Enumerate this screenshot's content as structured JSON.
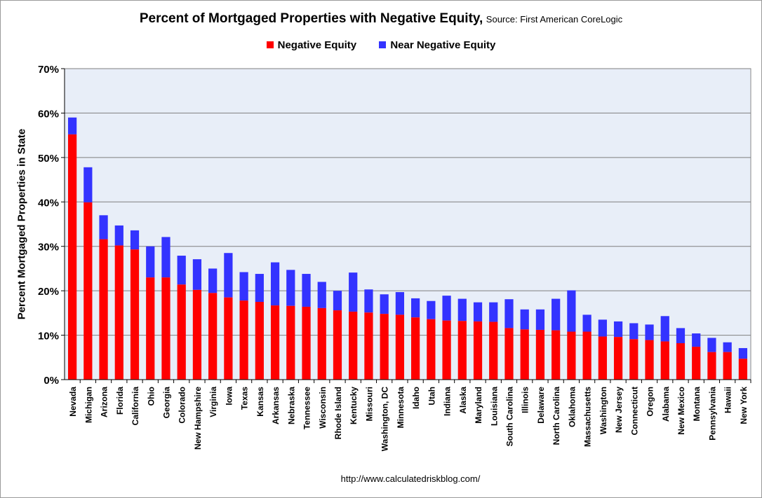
{
  "title": "Percent of Mortgaged Properties with Negative Equity,",
  "source": "Source: First American CoreLogic",
  "footer": "http://www.calculatedriskblog.com/",
  "colors": {
    "negative": "#ff0000",
    "near": "#3333ff",
    "plot_bg": "#e8eef8",
    "grid": "#7f7f7f"
  },
  "legend": {
    "negative": "Negative Equity",
    "near": "Near Negative Equity"
  },
  "chart_data": {
    "type": "bar",
    "stacked": true,
    "ylabel": "Percent Mortgaged Properties in State",
    "ylim": [
      0,
      70
    ],
    "ytick_values": [
      0,
      10,
      20,
      30,
      40,
      50,
      60,
      70
    ],
    "ytick_labels": [
      "0%",
      "10%",
      "20%",
      "30%",
      "40%",
      "50%",
      "60%",
      "70%"
    ],
    "grid": true,
    "legend_position": "top-center",
    "categories": [
      "Nevada",
      "Michigan",
      "Arizona",
      "Florida",
      "California",
      "Ohio",
      "Georgia",
      "Colorado",
      "New Hampshire",
      "Virginia",
      "Iowa",
      "Texas",
      "Kansas",
      "Arkansas",
      "Nebraska",
      "Tennessee",
      "Wisconsin",
      "Rhode Island",
      "Kentucky",
      "Missouri",
      "Washington, DC",
      "Minnesota",
      "Idaho",
      "Utah",
      "Indiana",
      "Alaska",
      "Maryland",
      "Louisiana",
      "South Carolina",
      "Illinois",
      "Delaware",
      "North Carolina",
      "Oklahoma",
      "Massachusetts",
      "Washington",
      "New Jersey",
      "Connecticut",
      "Oregon",
      "Alabama",
      "New Mexico",
      "Montana",
      "Pennsylvania",
      "Hawaii",
      "New York"
    ],
    "series": [
      {
        "name": "Negative Equity",
        "values": [
          55.2,
          39.9,
          31.6,
          30.2,
          29.3,
          23.0,
          23.0,
          21.4,
          20.2,
          19.5,
          18.5,
          17.8,
          17.5,
          16.7,
          16.6,
          16.4,
          16.1,
          15.6,
          15.3,
          15.1,
          14.8,
          14.6,
          14.0,
          13.6,
          13.3,
          13.2,
          13.1,
          13.0,
          11.6,
          11.3,
          11.2,
          11.1,
          10.8,
          10.8,
          9.7,
          9.6,
          9.1,
          8.9,
          8.6,
          8.2,
          7.4,
          6.2,
          6.2,
          4.7
        ]
      },
      {
        "name": "Near Negative Equity",
        "values": [
          3.8,
          7.9,
          5.4,
          4.5,
          4.3,
          7.0,
          9.1,
          6.5,
          6.9,
          5.5,
          10.0,
          6.4,
          6.3,
          9.7,
          8.1,
          7.4,
          5.9,
          4.4,
          8.8,
          5.2,
          4.4,
          5.1,
          4.3,
          4.1,
          5.6,
          5.0,
          4.3,
          4.4,
          6.5,
          4.5,
          4.6,
          7.1,
          9.3,
          3.8,
          3.8,
          3.5,
          3.6,
          3.5,
          5.7,
          3.4,
          3.0,
          3.2,
          2.2,
          2.4
        ]
      }
    ]
  }
}
